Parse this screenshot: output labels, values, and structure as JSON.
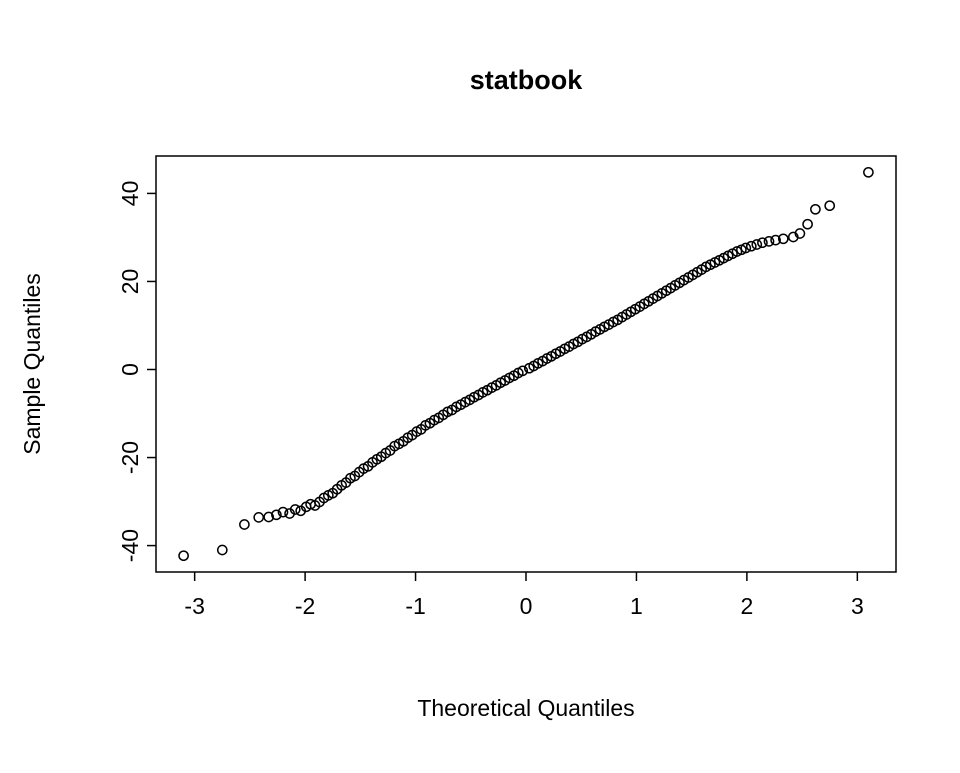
{
  "chart_data": {
    "type": "scatter",
    "title": "statbook",
    "xlabel": "Theoretical Quantiles",
    "ylabel": "Sample Quantiles",
    "xlim": [
      -3.35,
      3.35
    ],
    "ylim": [
      -46,
      48.5
    ],
    "x_ticks": [
      -3,
      -2,
      -1,
      0,
      1,
      2,
      3
    ],
    "y_ticks": [
      -40,
      -20,
      0,
      20,
      40
    ],
    "grid": false,
    "legend": "none",
    "marker": "open-circle",
    "marker_color": "#000000",
    "n_points": 122,
    "points": [
      [
        -3.1,
        -42.3
      ],
      [
        -2.75,
        -41.0
      ],
      [
        -2.55,
        -35.2
      ],
      [
        -2.42,
        -33.6
      ],
      [
        -2.33,
        -33.5
      ],
      [
        -2.26,
        -33.0
      ],
      [
        -2.2,
        -32.4
      ],
      [
        -2.14,
        -32.7
      ],
      [
        -2.09,
        -31.8
      ],
      [
        -2.04,
        -32.1
      ],
      [
        -1.99,
        -31.2
      ],
      [
        -1.95,
        -30.6
      ],
      [
        -1.91,
        -30.9
      ],
      [
        -1.87,
        -30.1
      ],
      [
        -1.83,
        -29.2
      ],
      [
        -1.79,
        -28.6
      ],
      [
        -1.75,
        -28.1
      ],
      [
        -1.71,
        -27.2
      ],
      [
        -1.67,
        -26.3
      ],
      [
        -1.63,
        -25.7
      ],
      [
        -1.59,
        -24.7
      ],
      [
        -1.55,
        -24.2
      ],
      [
        -1.51,
        -23.3
      ],
      [
        -1.47,
        -22.5
      ],
      [
        -1.43,
        -22.0
      ],
      [
        -1.39,
        -21.1
      ],
      [
        -1.35,
        -20.4
      ],
      [
        -1.31,
        -19.8
      ],
      [
        -1.27,
        -19.0
      ],
      [
        -1.23,
        -18.4
      ],
      [
        -1.19,
        -17.4
      ],
      [
        -1.15,
        -16.9
      ],
      [
        -1.11,
        -16.3
      ],
      [
        -1.07,
        -15.5
      ],
      [
        -1.03,
        -14.9
      ],
      [
        -0.99,
        -14.1
      ],
      [
        -0.95,
        -13.6
      ],
      [
        -0.91,
        -12.7
      ],
      [
        -0.87,
        -12.2
      ],
      [
        -0.83,
        -11.5
      ],
      [
        -0.79,
        -11.0
      ],
      [
        -0.75,
        -10.3
      ],
      [
        -0.71,
        -9.6
      ],
      [
        -0.67,
        -9.2
      ],
      [
        -0.63,
        -8.5
      ],
      [
        -0.59,
        -8.0
      ],
      [
        -0.55,
        -7.4
      ],
      [
        -0.51,
        -6.9
      ],
      [
        -0.47,
        -6.3
      ],
      [
        -0.43,
        -5.8
      ],
      [
        -0.39,
        -5.2
      ],
      [
        -0.35,
        -4.7
      ],
      [
        -0.31,
        -4.1
      ],
      [
        -0.27,
        -3.6
      ],
      [
        -0.23,
        -3.0
      ],
      [
        -0.19,
        -2.5
      ],
      [
        -0.15,
        -1.9
      ],
      [
        -0.11,
        -1.4
      ],
      [
        -0.07,
        -0.8
      ],
      [
        -0.03,
        -0.3
      ],
      [
        0.03,
        0.3
      ],
      [
        0.07,
        0.8
      ],
      [
        0.11,
        1.4
      ],
      [
        0.15,
        1.9
      ],
      [
        0.19,
        2.5
      ],
      [
        0.23,
        3.0
      ],
      [
        0.27,
        3.6
      ],
      [
        0.31,
        4.1
      ],
      [
        0.35,
        4.7
      ],
      [
        0.39,
        5.2
      ],
      [
        0.43,
        5.8
      ],
      [
        0.47,
        6.3
      ],
      [
        0.51,
        6.9
      ],
      [
        0.55,
        7.4
      ],
      [
        0.59,
        8.0
      ],
      [
        0.63,
        8.6
      ],
      [
        0.67,
        9.1
      ],
      [
        0.71,
        9.7
      ],
      [
        0.75,
        10.2
      ],
      [
        0.79,
        10.8
      ],
      [
        0.83,
        11.3
      ],
      [
        0.87,
        11.9
      ],
      [
        0.91,
        12.5
      ],
      [
        0.95,
        13.1
      ],
      [
        0.99,
        13.7
      ],
      [
        1.03,
        14.3
      ],
      [
        1.07,
        14.9
      ],
      [
        1.11,
        15.5
      ],
      [
        1.15,
        16.1
      ],
      [
        1.19,
        16.7
      ],
      [
        1.23,
        17.3
      ],
      [
        1.27,
        17.9
      ],
      [
        1.31,
        18.5
      ],
      [
        1.35,
        19.1
      ],
      [
        1.39,
        19.7
      ],
      [
        1.43,
        20.3
      ],
      [
        1.47,
        20.9
      ],
      [
        1.51,
        21.5
      ],
      [
        1.55,
        22.1
      ],
      [
        1.59,
        22.7
      ],
      [
        1.63,
        23.3
      ],
      [
        1.67,
        23.8
      ],
      [
        1.71,
        24.3
      ],
      [
        1.75,
        24.8
      ],
      [
        1.79,
        25.3
      ],
      [
        1.83,
        25.8
      ],
      [
        1.87,
        26.3
      ],
      [
        1.91,
        26.8
      ],
      [
        1.95,
        27.2
      ],
      [
        1.99,
        27.6
      ],
      [
        2.04,
        28.0
      ],
      [
        2.09,
        28.4
      ],
      [
        2.14,
        28.8
      ],
      [
        2.2,
        29.1
      ],
      [
        2.26,
        29.4
      ],
      [
        2.33,
        29.7
      ],
      [
        2.42,
        30.1
      ],
      [
        2.48,
        30.9
      ],
      [
        2.55,
        33.0
      ],
      [
        2.62,
        36.4
      ],
      [
        2.75,
        37.2
      ],
      [
        3.1,
        44.8
      ]
    ]
  }
}
